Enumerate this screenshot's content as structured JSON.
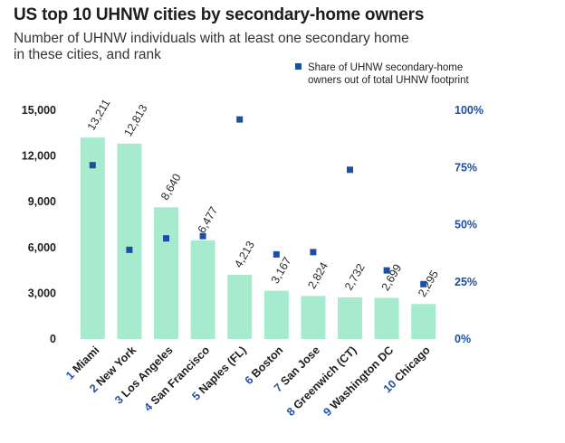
{
  "title": "US top 10 UHNW cities by secondary-home owners",
  "subtitle_line1": "Number of UHNW individuals with at least one secondary home",
  "subtitle_line2": "in these cities, and rank",
  "legend": {
    "label_line1": "Share of UHNW secondary-home",
    "label_line2": "owners out of total UHNW footprint"
  },
  "colors": {
    "bar": "#a6ebce",
    "marker": "#1c4fa3",
    "rank": "#2450a6",
    "text": "#1d1d1d",
    "right_axis": "#1c4fa3"
  },
  "chart_data": {
    "type": "bar",
    "categories": [
      "Miami",
      "New York",
      "Los Angeles",
      "San Francisco",
      "Naples (FL)",
      "Boston",
      "San Jose",
      "Greenwich (CT)",
      "Washington DC",
      "Chicago"
    ],
    "ranks": [
      "1",
      "2",
      "3",
      "4",
      "5",
      "6",
      "7",
      "8",
      "9",
      "10"
    ],
    "series": [
      {
        "axis": "left",
        "type": "bar",
        "values": [
          13211,
          12813,
          8640,
          6477,
          4213,
          3167,
          2824,
          2732,
          2699,
          2295
        ],
        "labels": [
          "13,211",
          "12,813",
          "8,640",
          "6,477",
          "4,213",
          "3,167",
          "2,824",
          "2,732",
          "2,699",
          "2,295"
        ]
      },
      {
        "name": "Share of UHNW secondary-home owners out of total UHNW footprint",
        "axis": "right",
        "type": "scatter",
        "values": [
          76,
          39,
          44,
          45,
          96,
          37,
          38,
          74,
          30,
          24
        ]
      }
    ],
    "left_axis": {
      "ylim": [
        0,
        15000
      ],
      "ticks": [
        0,
        3000,
        6000,
        9000,
        12000,
        15000
      ],
      "tick_labels": [
        "0",
        "3,000",
        "6,000",
        "9,000",
        "12,000",
        "15,000"
      ]
    },
    "right_axis": {
      "ylim": [
        0,
        100
      ],
      "ticks": [
        0,
        25,
        50,
        75,
        100
      ],
      "tick_labels": [
        "0%",
        "25%",
        "50%",
        "75%",
        "100%"
      ]
    },
    "legend_position": "top-right",
    "grid": false
  }
}
